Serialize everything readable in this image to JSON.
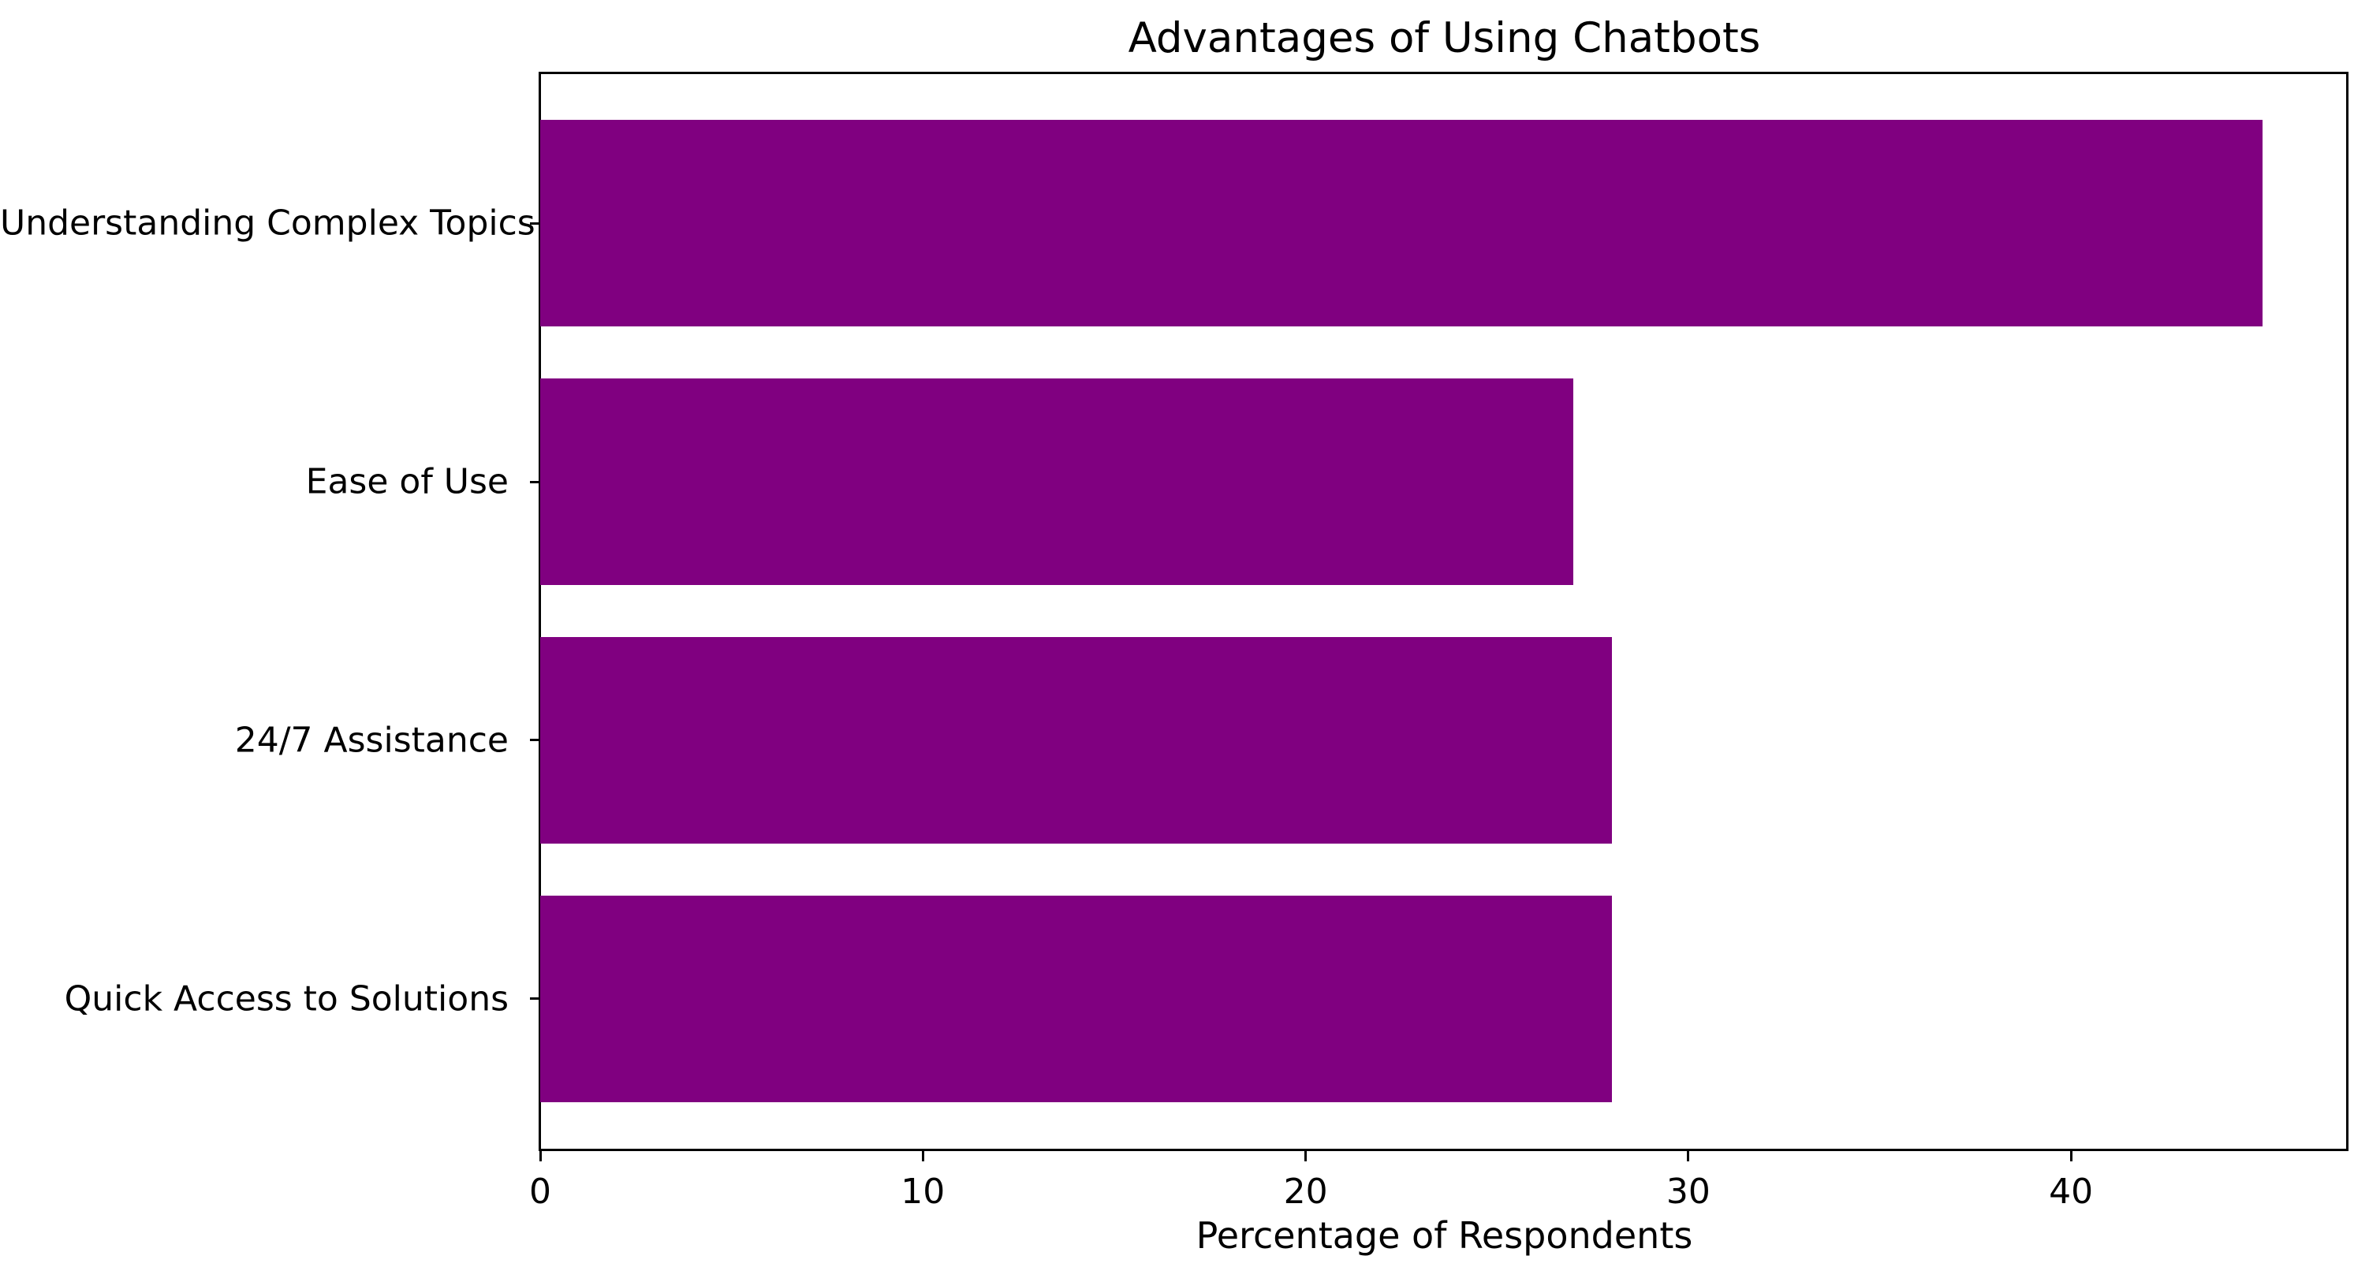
{
  "chart_data": {
    "type": "bar",
    "orientation": "horizontal",
    "title": "Advantages of Using Chatbots",
    "xlabel": "Percentage of Respondents",
    "ylabel": "",
    "categories": [
      "Understanding Complex Topics",
      "Ease of Use",
      "24/7 Assistance",
      "Quick Access to Solutions"
    ],
    "values": [
      45,
      27,
      28,
      28
    ],
    "xlim": [
      0,
      47.25
    ],
    "xticks": [
      0,
      10,
      20,
      30,
      40
    ],
    "bar_color": "#800080",
    "text_color": "#000000",
    "grid": false,
    "legend": false
  }
}
